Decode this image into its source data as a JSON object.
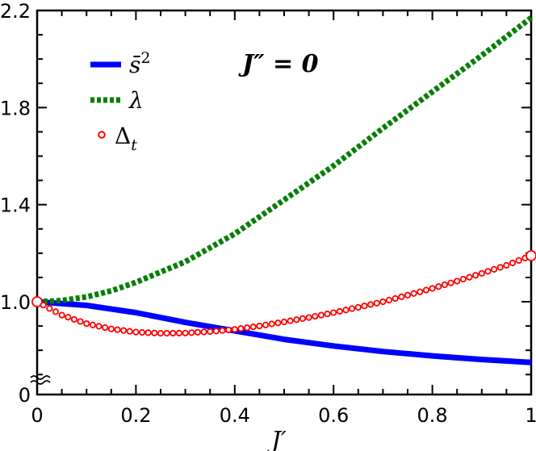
{
  "chart_data": {
    "type": "line",
    "xlabel": "J′",
    "ylabel": "",
    "xlim": [
      0,
      1
    ],
    "ylim": [
      0,
      2.2
    ],
    "y_axis_break": true,
    "x_ticks": [
      0,
      0.2,
      0.4,
      0.6,
      0.8,
      1
    ],
    "x_tick_labels": [
      "0",
      "0.2",
      "0.4",
      "0.6",
      "0.8",
      "1"
    ],
    "y_ticks": [
      0,
      1.0,
      1.4,
      1.8,
      2.2
    ],
    "y_tick_labels": [
      "0",
      "1.0",
      "1.4",
      "1.8",
      "2.2"
    ],
    "annotation": "J″ = 0",
    "legend_position": "top-left",
    "grid": false,
    "series": [
      {
        "name": "s̄²",
        "style": "solid",
        "color": "#0000ff",
        "x": [
          0,
          0.1,
          0.2,
          0.3,
          0.4,
          0.5,
          0.6,
          0.7,
          0.8,
          0.9,
          1.0
        ],
        "y": [
          1.0,
          0.985,
          0.955,
          0.915,
          0.88,
          0.845,
          0.818,
          0.795,
          0.777,
          0.762,
          0.75
        ]
      },
      {
        "name": "λ",
        "style": "dotted",
        "color": "#008000",
        "x": [
          0,
          0.05,
          0.1,
          0.15,
          0.2,
          0.3,
          0.4,
          0.5,
          0.6,
          0.7,
          0.8,
          0.9,
          1.0
        ],
        "y": [
          1.0,
          1.005,
          1.02,
          1.045,
          1.08,
          1.165,
          1.28,
          1.42,
          1.56,
          1.715,
          1.865,
          2.015,
          2.17
        ]
      },
      {
        "name": "Δ_t",
        "style": "open-circle-markers",
        "color": "#ff0000",
        "x": [
          0,
          0.05,
          0.1,
          0.15,
          0.2,
          0.25,
          0.3,
          0.35,
          0.4,
          0.45,
          0.5,
          0.55,
          0.6,
          0.65,
          0.7,
          0.75,
          0.8,
          0.85,
          0.9,
          0.95,
          1.0
        ],
        "y": [
          1.0,
          0.945,
          0.91,
          0.888,
          0.875,
          0.87,
          0.871,
          0.877,
          0.886,
          0.9,
          0.917,
          0.935,
          0.955,
          0.977,
          1.0,
          1.027,
          1.055,
          1.085,
          1.117,
          1.15,
          1.19
        ]
      }
    ]
  }
}
